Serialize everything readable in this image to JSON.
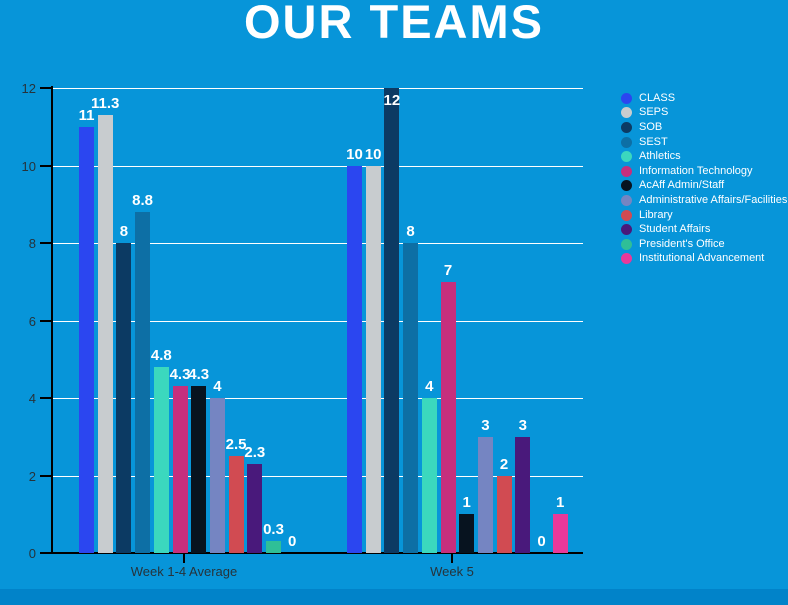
{
  "title": "OUR TEAMS",
  "colors": {
    "background": "#0795D9",
    "footer_strip": "#0183C9",
    "title_text": "#FFFFFF",
    "axis_line": "#000000",
    "tick_label_text": "#26333B",
    "gridline": "#FFFFFF",
    "value_label_text": "#FFFFFF",
    "legend_text": "#FFFFFF"
  },
  "chart_data": {
    "type": "bar",
    "title": "OUR TEAMS",
    "categories": [
      "Week 1-4 Average",
      "Week 5"
    ],
    "series": [
      {
        "name": "CLASS",
        "color": "#2B46F0",
        "values": [
          11,
          10
        ]
      },
      {
        "name": "SEPS",
        "color": "#C8CCCF",
        "values": [
          11.3,
          10
        ]
      },
      {
        "name": "SOB",
        "color": "#0C3A63",
        "values": [
          8,
          12
        ]
      },
      {
        "name": "SEST",
        "color": "#0D6FA5",
        "values": [
          8.8,
          8
        ]
      },
      {
        "name": "Athletics",
        "color": "#3BD8BE",
        "values": [
          4.8,
          4
        ]
      },
      {
        "name": "Information Technology",
        "color": "#C62F7D",
        "values": [
          4.3,
          7
        ]
      },
      {
        "name": "AcAff Admin/Staff",
        "color": "#07131F",
        "values": [
          4.3,
          1
        ]
      },
      {
        "name": "Administrative Affairs/Facilities",
        "color": "#7585C2",
        "values": [
          4,
          3
        ]
      },
      {
        "name": "Library",
        "color": "#D14B52",
        "values": [
          2.5,
          2
        ]
      },
      {
        "name": "Student Affairs",
        "color": "#49197B",
        "values": [
          2.3,
          3
        ]
      },
      {
        "name": "President's Office",
        "color": "#2FBF97",
        "values": [
          0.3,
          0
        ]
      },
      {
        "name": "Institutional Advancement",
        "color": "#E8399A",
        "values": [
          0,
          1
        ]
      }
    ],
    "ylim": [
      0,
      12
    ],
    "yticks": [
      0,
      2,
      4,
      6,
      8,
      10,
      12
    ],
    "grid": true,
    "legend_position": "right",
    "value_labels": true
  }
}
